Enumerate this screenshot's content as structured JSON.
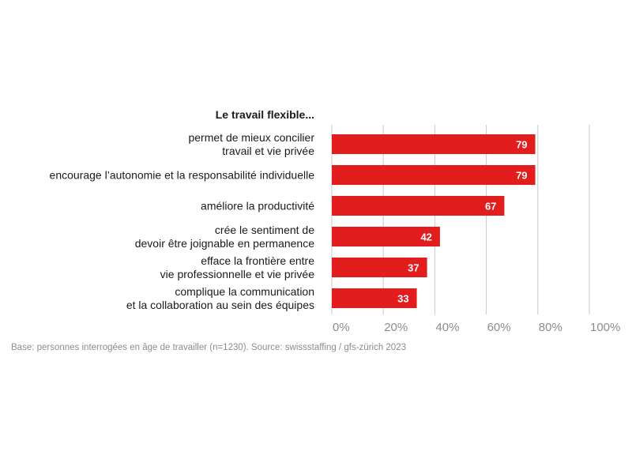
{
  "colors": {
    "bar": "#e11d1d",
    "grid": "#c8c8c8",
    "text": "#1a1a1a",
    "muted": "#8c8c8c"
  },
  "chart_data": {
    "type": "bar",
    "orientation": "horizontal",
    "title": "Le travail flexible...",
    "categories": [
      [
        "permet de mieux concilier",
        "travail et vie privée"
      ],
      [
        "encourage l’autonomie et la responsabilité individuelle"
      ],
      [
        "améliore la productivité"
      ],
      [
        "crée le sentiment de",
        "devoir être joignable en permanence"
      ],
      [
        "efface la frontière entre",
        "vie professionnelle et vie privée"
      ],
      [
        "complique la communication",
        "et la collaboration au sein des équipes"
      ]
    ],
    "values": [
      79,
      79,
      67,
      42,
      37,
      33
    ],
    "xlim": [
      0,
      100
    ],
    "xticks": [
      "0%",
      "20%",
      "40%",
      "60%",
      "80%",
      "100%"
    ],
    "grid": true,
    "source": "Base: personnes interrogées en âge de travailler (n=1230). Source: swissstaffing / gfs-zürich 2023"
  }
}
